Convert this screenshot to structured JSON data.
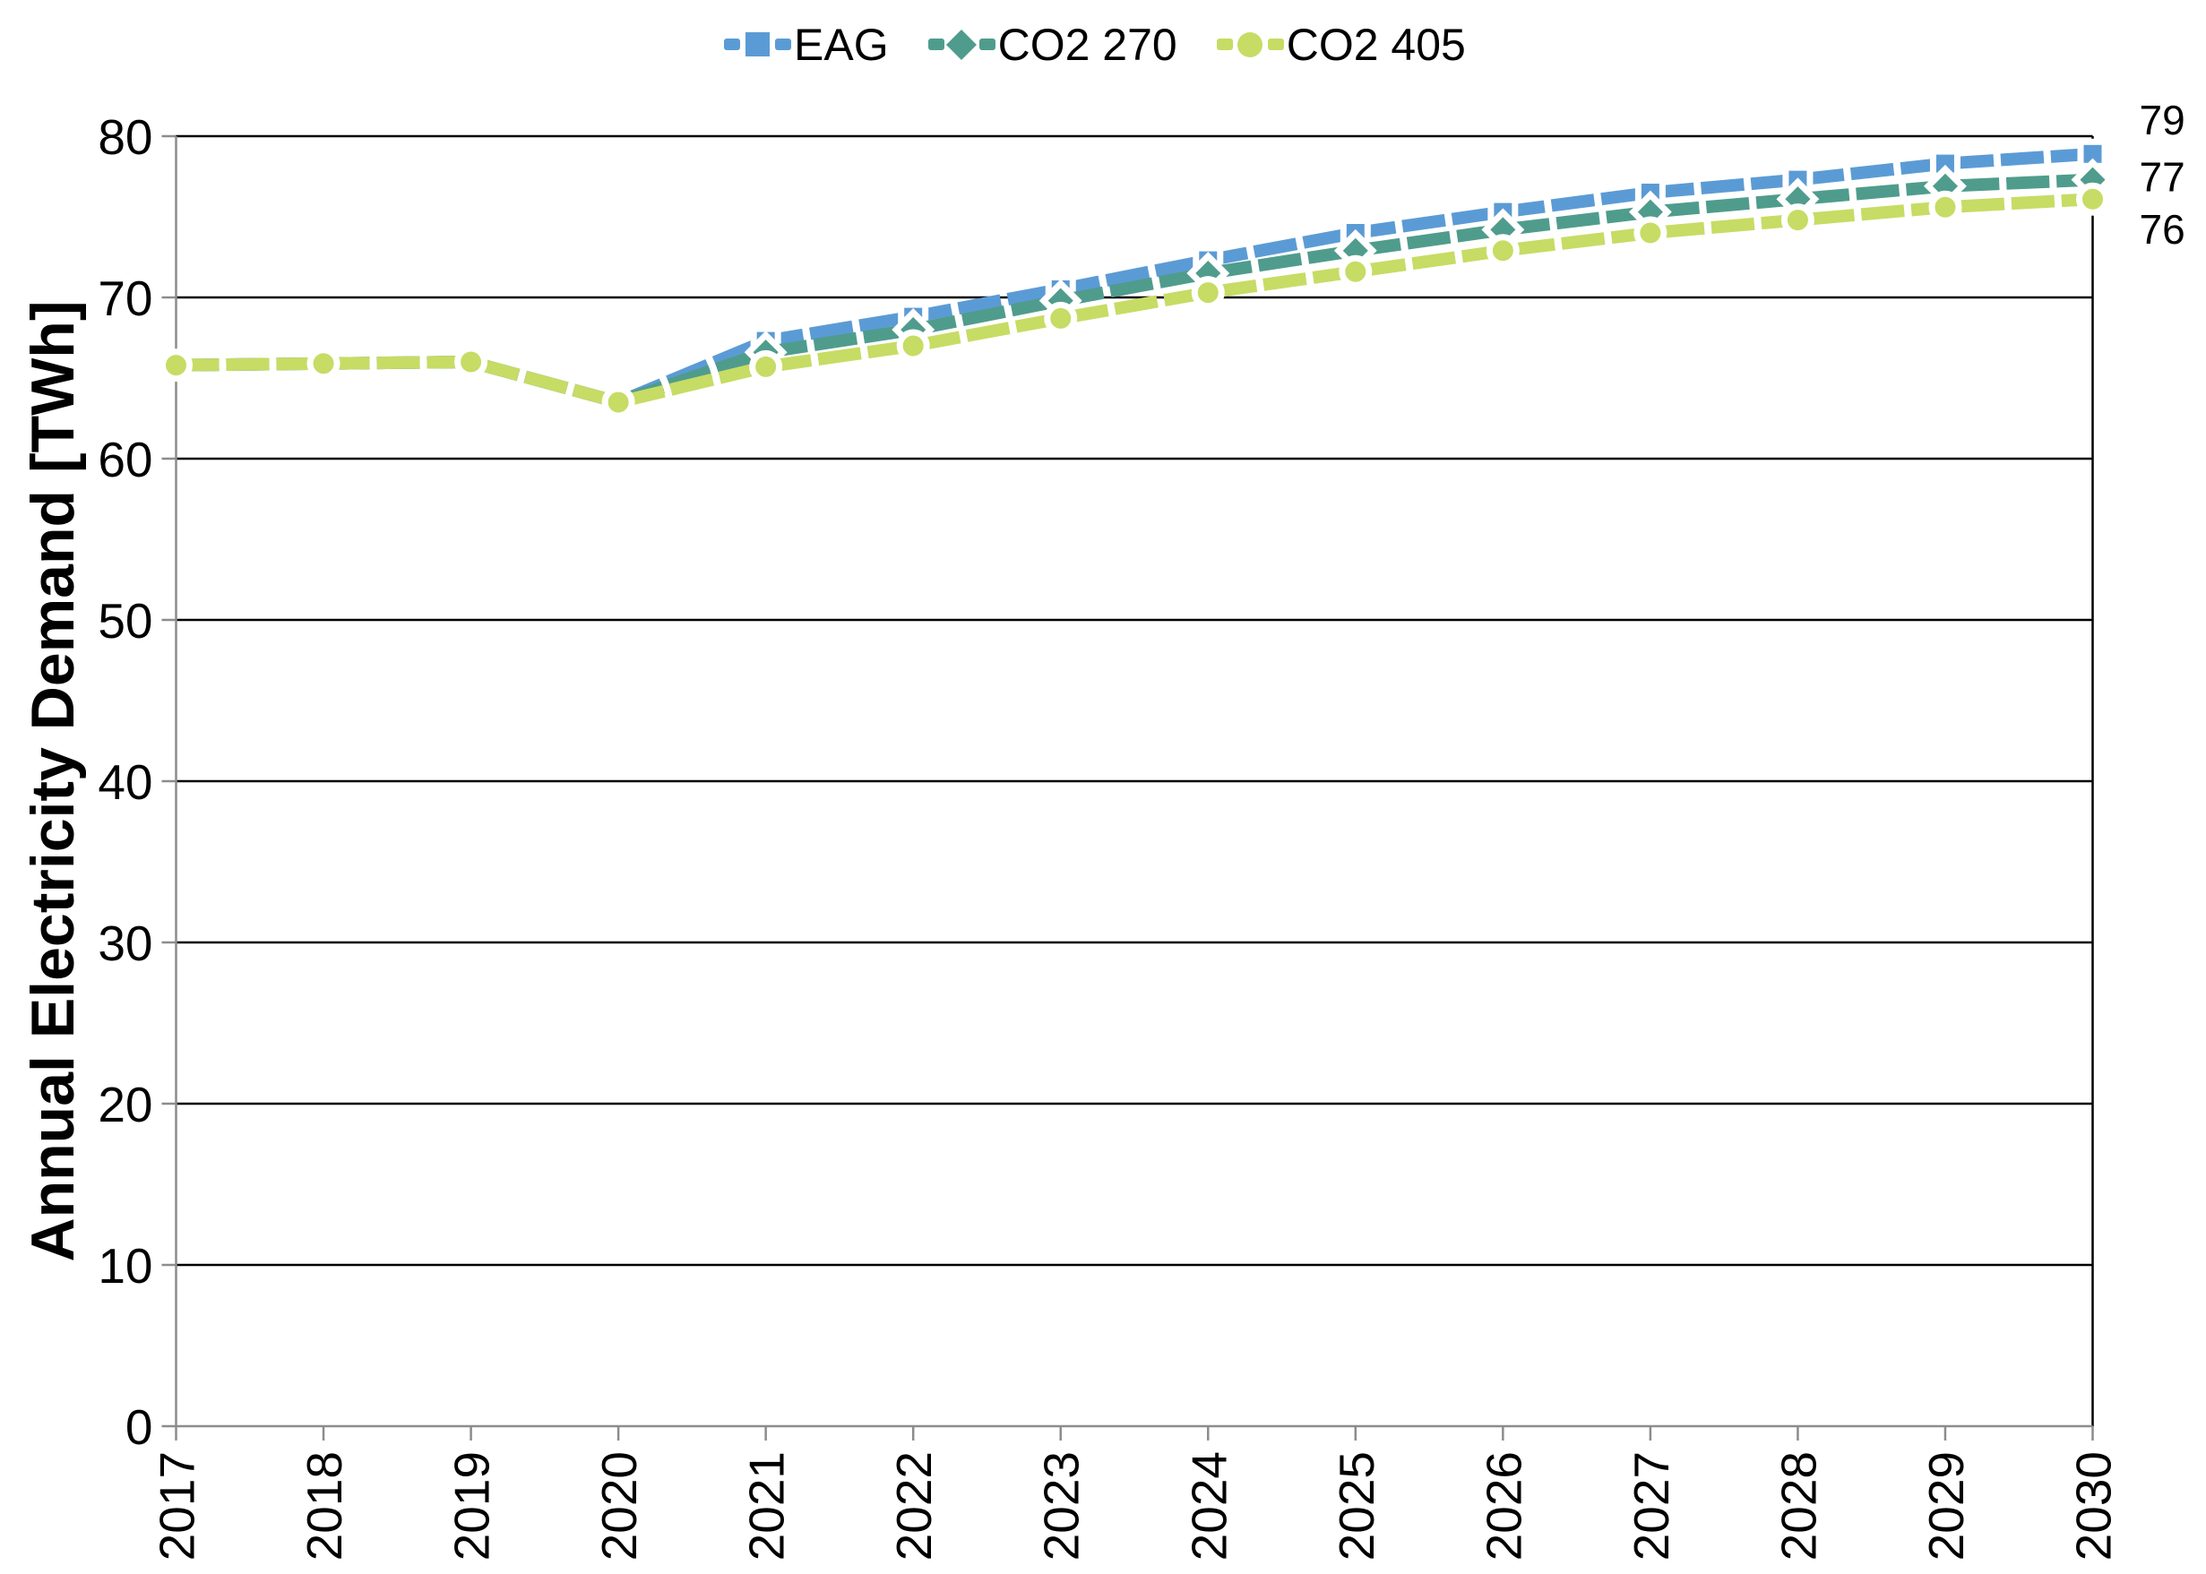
{
  "legend": {
    "items": [
      {
        "label": "EAG",
        "color": "#5B9BD5",
        "marker": "square"
      },
      {
        "label": "CO2 270",
        "color": "#4F9C8D",
        "marker": "diamond"
      },
      {
        "label": "CO2 405",
        "color": "#C6DC64",
        "marker": "circle"
      }
    ]
  },
  "chart_data": {
    "type": "line",
    "title": "",
    "xlabel": "",
    "ylabel": "Annual Electricity Demand [TWh]",
    "x": [
      2017,
      2018,
      2019,
      2020,
      2021,
      2022,
      2023,
      2024,
      2025,
      2026,
      2027,
      2028,
      2029,
      2030
    ],
    "yticks": [
      0,
      10,
      20,
      30,
      40,
      50,
      60,
      70,
      80
    ],
    "ylim": [
      0,
      80
    ],
    "grid": "horizontal",
    "legend_position": "top-center",
    "series": [
      {
        "name": "EAG",
        "color": "#5B9BD5",
        "marker": "square",
        "marker_from_year": 2021,
        "values": [
          65.8,
          65.9,
          66.0,
          63.5,
          67.3,
          68.8,
          70.5,
          72.3,
          74.0,
          75.3,
          76.5,
          77.3,
          78.3,
          78.9
        ],
        "end_label": "79",
        "end_label_dy": -22
      },
      {
        "name": "CO2 270",
        "color": "#4F9C8D",
        "marker": "diamond",
        "marker_from_year": 2021,
        "values": [
          65.8,
          65.9,
          66.0,
          63.5,
          66.6,
          68.0,
          69.8,
          71.5,
          72.9,
          74.2,
          75.3,
          76.1,
          76.9,
          77.3
        ],
        "end_label": "77",
        "end_label_dy": 13
      },
      {
        "name": "CO2 405",
        "color": "#C6DC64",
        "marker": "circle",
        "marker_from_year": 2017,
        "values": [
          65.8,
          65.9,
          66.0,
          63.5,
          65.7,
          67.0,
          68.7,
          70.3,
          71.6,
          72.9,
          74.0,
          74.8,
          75.6,
          76.1
        ],
        "end_label": "76",
        "end_label_dy": 50
      }
    ]
  },
  "colors": {
    "gridline": "#000000",
    "axis": "#8C8C8C",
    "text": "#000000",
    "background": "#FFFFFF"
  }
}
